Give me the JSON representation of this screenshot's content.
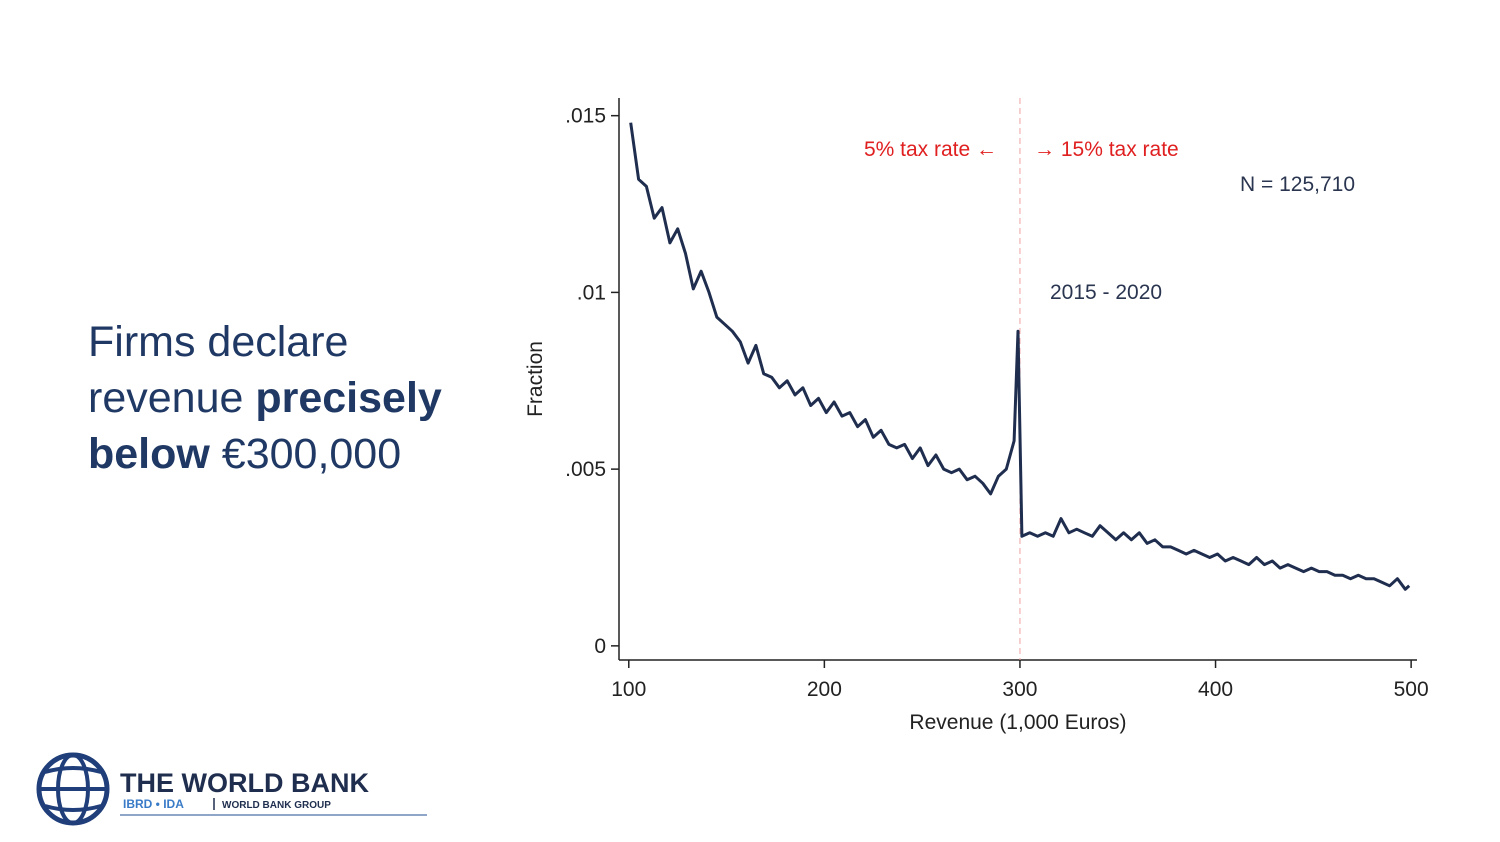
{
  "slide": {
    "headline": [
      [
        {
          "text": "Firms declare"
        }
      ],
      [
        {
          "text": "revenue "
        },
        {
          "text": "precisely",
          "bold": true
        }
      ],
      [
        {
          "text": "below",
          "bold": true
        },
        {
          "text": " €300,000"
        }
      ]
    ],
    "logo": {
      "name": "THE WORLD BANK",
      "sub1": "IBRD • IDA",
      "sub2": "WORLD BANK GROUP"
    }
  },
  "chart_data": {
    "type": "line",
    "x_label": "Revenue (1,000 Euros)",
    "y_label": "Fraction",
    "color": "#1f2d4e",
    "x": [
      101,
      105,
      109,
      113,
      117,
      121,
      125,
      129,
      133,
      137,
      141,
      145,
      149,
      153,
      157,
      161,
      165,
      169,
      173,
      177,
      181,
      185,
      189,
      193,
      197,
      201,
      205,
      209,
      213,
      217,
      221,
      225,
      229,
      233,
      237,
      241,
      245,
      249,
      253,
      257,
      261,
      265,
      269,
      273,
      277,
      281,
      285,
      289,
      293,
      297,
      299,
      301,
      305,
      309,
      313,
      317,
      321,
      325,
      329,
      333,
      337,
      341,
      345,
      349,
      353,
      357,
      361,
      365,
      369,
      373,
      377,
      381,
      385,
      389,
      393,
      397,
      401,
      405,
      409,
      413,
      417,
      421,
      425,
      429,
      433,
      437,
      441,
      445,
      449,
      453,
      457,
      461,
      465,
      469,
      473,
      477,
      481,
      485,
      489,
      493,
      497,
      499
    ],
    "values": [
      0.0148,
      0.0132,
      0.013,
      0.0121,
      0.0124,
      0.0114,
      0.0118,
      0.0111,
      0.0101,
      0.0106,
      0.01,
      0.0093,
      0.0091,
      0.0089,
      0.0086,
      0.008,
      0.0085,
      0.0077,
      0.0076,
      0.0073,
      0.0075,
      0.0071,
      0.0073,
      0.0068,
      0.007,
      0.0066,
      0.0069,
      0.0065,
      0.0066,
      0.0062,
      0.0064,
      0.0059,
      0.0061,
      0.0057,
      0.0056,
      0.0057,
      0.0053,
      0.0056,
      0.0051,
      0.0054,
      0.005,
      0.0049,
      0.005,
      0.0047,
      0.0048,
      0.0046,
      0.0043,
      0.0048,
      0.005,
      0.0058,
      0.0089,
      0.0031,
      0.0032,
      0.0031,
      0.0032,
      0.0031,
      0.0036,
      0.0032,
      0.0033,
      0.0032,
      0.0031,
      0.0034,
      0.0032,
      0.003,
      0.0032,
      0.003,
      0.0032,
      0.0029,
      0.003,
      0.0028,
      0.0028,
      0.0027,
      0.0026,
      0.0027,
      0.0026,
      0.0025,
      0.0026,
      0.0024,
      0.0025,
      0.0024,
      0.0023,
      0.0025,
      0.0023,
      0.0024,
      0.0022,
      0.0023,
      0.0022,
      0.0021,
      0.0022,
      0.0021,
      0.0021,
      0.002,
      0.002,
      0.0019,
      0.002,
      0.0019,
      0.0019,
      0.0018,
      0.0017,
      0.0019,
      0.0016,
      0.0017
    ],
    "xlim": [
      95,
      503
    ],
    "ylim": [
      -0.0004,
      0.0155
    ],
    "xticks": [
      100,
      200,
      300,
      400,
      500
    ],
    "yticks": [
      0,
      {
        "value": 0.005,
        "label": ".005"
      },
      {
        "value": 0.01,
        "label": ".01"
      },
      {
        "value": 0.015,
        "label": ".015"
      }
    ],
    "threshold": 300,
    "annotations": {
      "left": "5% tax rate ←",
      "right": "→ 15% tax rate",
      "n": "N = 125,710",
      "period": "2015 - 2020"
    }
  }
}
